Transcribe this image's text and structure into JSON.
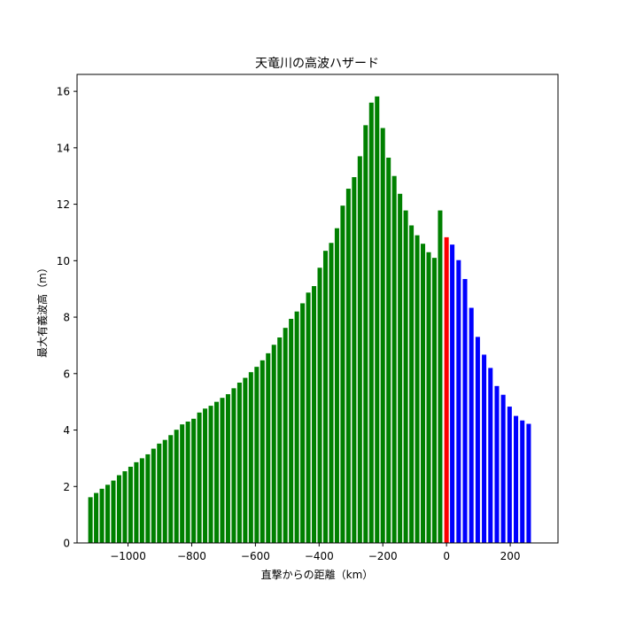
{
  "chart_data": {
    "type": "bar",
    "title": "天竜川の高波ハザード",
    "xlabel": "直撃からの距離（km）",
    "ylabel": "最大有義波高（m）",
    "xlim": [
      -1160,
      350
    ],
    "ylim": [
      0,
      16.6
    ],
    "xticks": [
      -1000,
      -800,
      -600,
      -400,
      -200,
      0,
      200
    ],
    "xtick_labels": [
      "−1000",
      "−800",
      "−600",
      "−400",
      "−200",
      "0",
      "200"
    ],
    "yticks": [
      0,
      2,
      4,
      6,
      8,
      10,
      12,
      14,
      16
    ],
    "ytick_labels": [
      "0",
      "2",
      "4",
      "6",
      "8",
      "10",
      "12",
      "14",
      "16"
    ],
    "bar_width_km": 14,
    "grid": false,
    "legend": "none",
    "colors": {
      "approach": "#008000",
      "landfall": "#ff0000",
      "after": "#0000ff"
    },
    "series": [
      {
        "color": "#008000",
        "x": [
          -1118,
          -1100,
          -1082,
          -1064,
          -1046,
          -1028,
          -1010,
          -992,
          -974,
          -956,
          -938,
          -920,
          -902,
          -884,
          -866,
          -848,
          -830,
          -812,
          -794,
          -776,
          -758,
          -740,
          -722,
          -704,
          -686,
          -668,
          -650,
          -632,
          -614,
          -596,
          -578,
          -560,
          -542,
          -524,
          -506,
          -488,
          -470,
          -452,
          -434,
          -416,
          -398,
          -380,
          -362,
          -344,
          -326,
          -308,
          -290,
          -272,
          -254,
          -236,
          -218,
          -200,
          -182,
          -164,
          -146,
          -128,
          -110,
          -92,
          -74,
          -56,
          -38,
          -20
        ],
        "values": [
          1.62,
          1.77,
          1.92,
          2.06,
          2.21,
          2.4,
          2.54,
          2.7,
          2.86,
          3.0,
          3.14,
          3.34,
          3.52,
          3.65,
          3.82,
          4.01,
          4.2,
          4.3,
          4.4,
          4.62,
          4.76,
          4.86,
          5.0,
          5.14,
          5.27,
          5.48,
          5.68,
          5.85,
          6.05,
          6.24,
          6.47,
          6.72,
          7.02,
          7.28,
          7.62,
          7.94,
          8.2,
          8.49,
          8.87,
          9.1,
          9.75,
          10.35,
          10.63,
          11.15,
          11.95,
          12.55,
          12.96,
          13.7,
          14.8,
          15.6,
          15.82,
          14.7,
          13.65,
          13.0,
          12.37,
          11.78,
          11.25,
          10.9,
          10.6,
          10.3,
          10.1,
          11.78
        ]
      },
      {
        "color": "#ff0000",
        "x": [
          0
        ],
        "values": [
          10.83
        ]
      },
      {
        "color": "#0000ff",
        "x": [
          18,
          38,
          58,
          78,
          98,
          118,
          138,
          158,
          178,
          198,
          218,
          238,
          258
        ],
        "values": [
          10.57,
          10.02,
          9.35,
          8.33,
          7.3,
          6.67,
          6.2,
          5.56,
          5.25,
          4.83,
          4.5,
          4.34,
          4.22
        ]
      }
    ]
  }
}
